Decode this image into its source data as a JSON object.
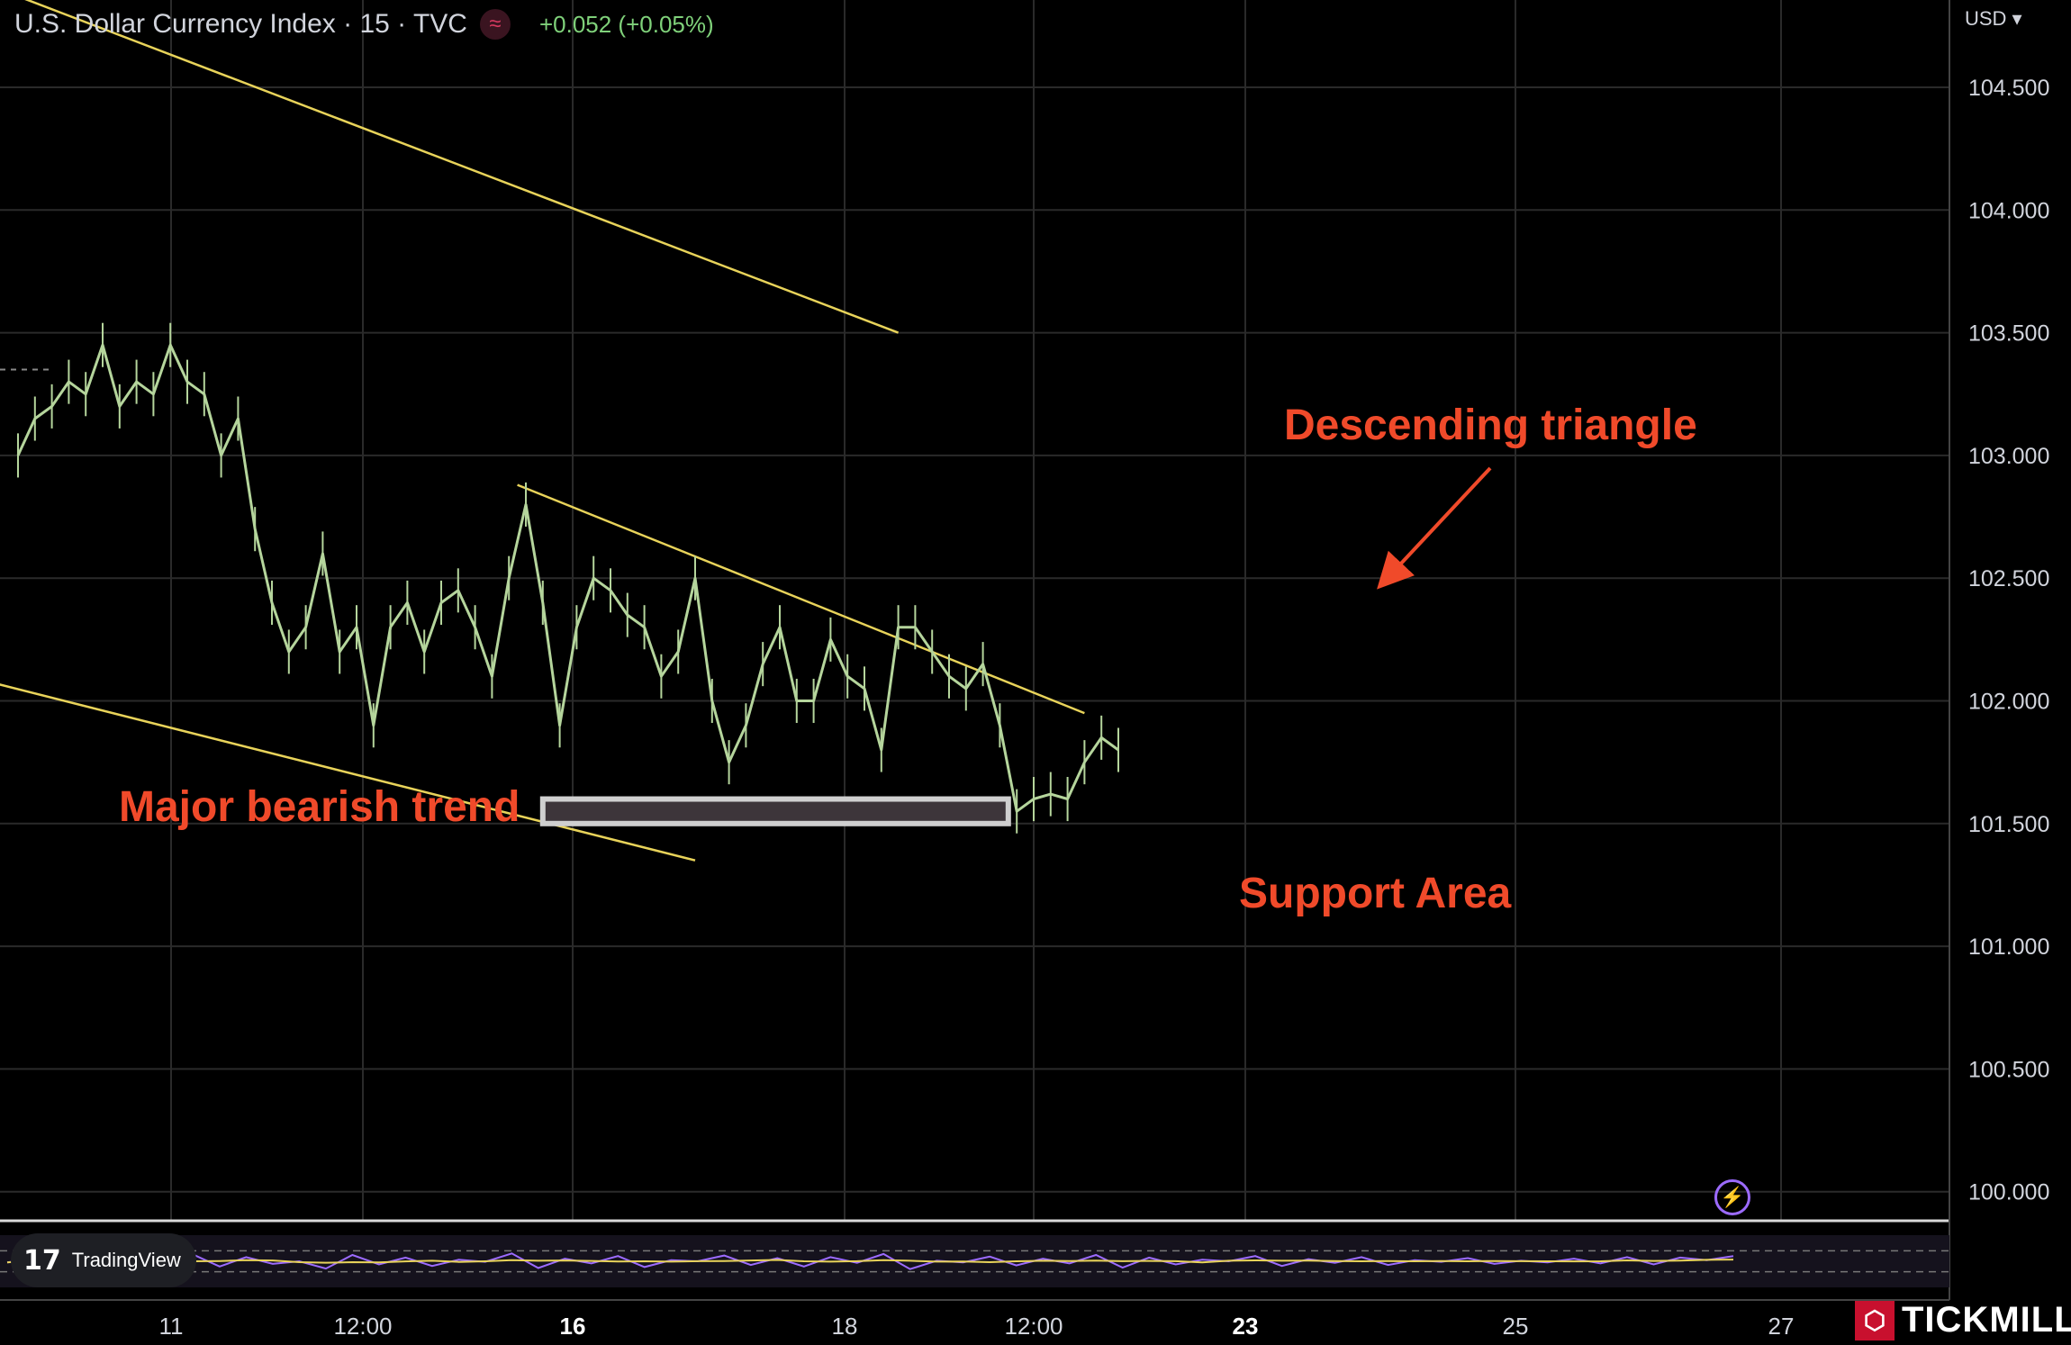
{
  "header": {
    "symbol": "U.S. Dollar Currency Index · 15 · TVC",
    "change": "+0.052 (+0.05%)",
    "badge_icon": "wave-icon"
  },
  "currency_menu": "USD ▾",
  "branding": {
    "tradingview": "TradingView",
    "tickmill": "TICKMILL"
  },
  "colors": {
    "background": "#000000",
    "grid": "#2a2a2a",
    "price": "#b5d59c",
    "trendline": "#e8d35a",
    "annotation": "#f04a2a",
    "support_fill": "#3d353a",
    "support_border": "#cfcfcf",
    "rsi": "#9c6bff",
    "rsi_ma": "#e8d35a"
  },
  "chart_data": {
    "type": "line",
    "title": "U.S. Dollar Currency Index · 15 · TVC",
    "y_axis": {
      "ticks": [
        "104.500",
        "104.000",
        "103.500",
        "103.000",
        "102.500",
        "102.000",
        "101.500",
        "101.000",
        "100.500",
        "100.000"
      ],
      "ylim": [
        99.9,
        104.8
      ]
    },
    "x_axis": {
      "ticks": [
        {
          "label": "11",
          "bold": false
        },
        {
          "label": "12:00",
          "bold": false
        },
        {
          "label": "16",
          "bold": true
        },
        {
          "label": "18",
          "bold": false
        },
        {
          "label": "12:00",
          "bold": false
        },
        {
          "label": "23",
          "bold": true
        },
        {
          "label": "25",
          "bold": false
        },
        {
          "label": "27",
          "bold": false
        }
      ]
    },
    "series": [
      {
        "x": [
          0,
          1,
          2,
          3,
          4,
          5,
          6,
          7,
          8,
          9,
          10,
          11,
          12,
          13,
          14,
          15,
          16,
          17,
          18,
          19,
          20,
          21,
          22,
          23,
          24,
          25,
          26,
          27,
          28,
          29,
          30,
          31,
          32,
          33,
          34,
          35,
          36,
          37,
          38,
          39,
          40,
          41,
          42,
          43,
          44,
          45,
          46,
          47,
          48,
          49,
          50,
          51,
          52,
          53,
          54,
          55,
          56,
          57,
          58,
          59,
          60,
          61,
          62,
          63,
          64,
          65
        ],
        "y": [
          103.0,
          103.15,
          103.2,
          103.3,
          103.25,
          103.45,
          103.2,
          103.3,
          103.25,
          103.45,
          103.3,
          103.25,
          103.0,
          103.15,
          102.7,
          102.4,
          102.2,
          102.3,
          102.6,
          102.2,
          102.3,
          101.9,
          102.3,
          102.4,
          102.2,
          102.4,
          102.45,
          102.3,
          102.1,
          102.5,
          102.8,
          102.4,
          101.9,
          102.3,
          102.5,
          102.45,
          102.35,
          102.3,
          102.1,
          102.2,
          102.5,
          102.0,
          101.75,
          101.9,
          102.15,
          102.3,
          102.0,
          102.0,
          102.25,
          102.1,
          102.05,
          101.8,
          102.3,
          102.3,
          102.2,
          102.1,
          102.05,
          102.15,
          101.9,
          101.55,
          101.6,
          101.62,
          101.6,
          101.75,
          101.85,
          101.8
        ]
      }
    ],
    "trendlines": [
      {
        "name": "upper channel",
        "points": [
          [
            -3,
            104.95
          ],
          [
            52,
            103.5
          ]
        ]
      },
      {
        "name": "lower channel",
        "points": [
          [
            -3,
            102.1
          ],
          [
            40,
            101.35
          ]
        ]
      },
      {
        "name": "triangle top",
        "points": [
          [
            29.5,
            102.88
          ],
          [
            63,
            101.95
          ]
        ]
      }
    ],
    "support_zone": {
      "label": "Support Area",
      "x_range": [
        31,
        58.5
      ],
      "y_range": [
        101.5,
        101.6
      ]
    },
    "annotations": {
      "bearish": "Major bearish trend",
      "triangle": "Descending triangle",
      "support": "Support Area"
    },
    "rsi": {
      "upper_band": 70,
      "lower_band": 30,
      "values": [
        48,
        55,
        42,
        60,
        38,
        52,
        47,
        63,
        40,
        58,
        45,
        50,
        36,
        62,
        44,
        57,
        41,
        53,
        49,
        65,
        37,
        55,
        46,
        60,
        39,
        52,
        50,
        61,
        43,
        56,
        40,
        58,
        47,
        64,
        35,
        51,
        48,
        59,
        42,
        55,
        46,
        62,
        38,
        57,
        44,
        53,
        50,
        60,
        41,
        54,
        47,
        58,
        43,
        52,
        49,
        56,
        45,
        51,
        48,
        55,
        46,
        58,
        44,
        57,
        52,
        60
      ]
    }
  }
}
